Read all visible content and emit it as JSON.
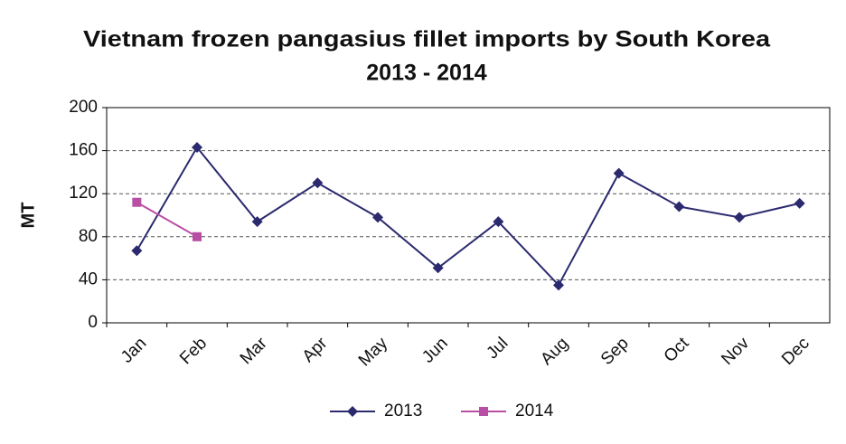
{
  "chart_data": {
    "type": "line",
    "title": "Vietnam frozen pangasius fillet imports by South Korea",
    "subtitle": "2013 - 2014",
    "y_label": "MT",
    "categories": [
      "Jan",
      "Feb",
      "Mar",
      "Apr",
      "May",
      "Jun",
      "Jul",
      "Aug",
      "Sep",
      "Oct",
      "Nov",
      "Dec"
    ],
    "series": [
      {
        "name": "2013",
        "color": "#2b2a6e",
        "marker": "diamond",
        "values": [
          67,
          163,
          94,
          130,
          98,
          51,
          94,
          35,
          139,
          108,
          98,
          111
        ]
      },
      {
        "name": "2014",
        "color": "#b84fa5",
        "marker": "square",
        "values": [
          112,
          80,
          null,
          null,
          null,
          null,
          null,
          null,
          null,
          null,
          null,
          null
        ]
      }
    ],
    "ylim": [
      0,
      200
    ],
    "yticks": [
      0,
      40,
      80,
      120,
      160,
      200
    ],
    "grid": true,
    "legend": "bottom"
  }
}
